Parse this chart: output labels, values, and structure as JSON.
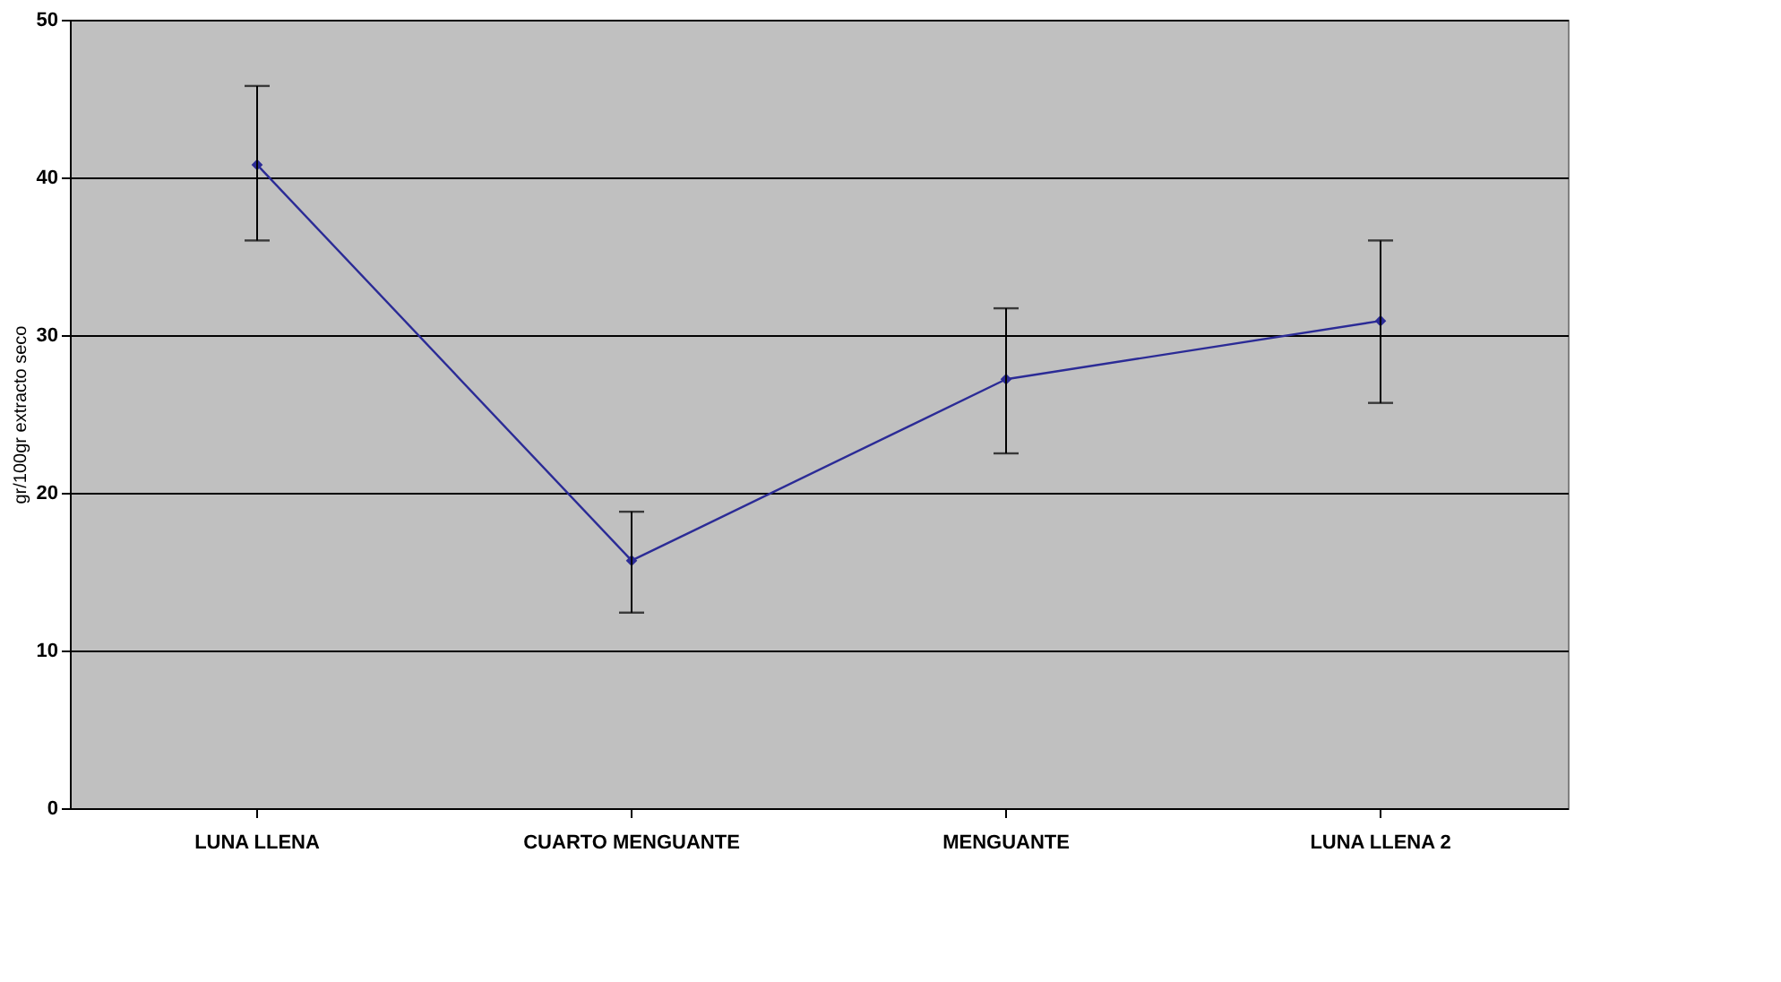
{
  "chart_data": {
    "type": "line",
    "ylabel": "gr/100gr extracto seco",
    "categories": [
      "LUNA LLENA",
      "CUARTO MENGUANTE",
      "MENGUANTE",
      "LUNA LLENA 2"
    ],
    "series": [
      {
        "color": "#2b2b96",
        "values": [
          40.8,
          15.7,
          27.2,
          30.9
        ],
        "errors": [
          [
            36.0,
            45.8
          ],
          [
            12.4,
            18.8
          ],
          [
            22.5,
            31.7
          ],
          [
            25.7,
            36.0
          ]
        ]
      }
    ],
    "ylim": [
      0,
      50
    ],
    "yticks": [
      0,
      10,
      20,
      30,
      40,
      50
    ],
    "grid": "y",
    "marker": "diamond",
    "line_style": "solid"
  }
}
